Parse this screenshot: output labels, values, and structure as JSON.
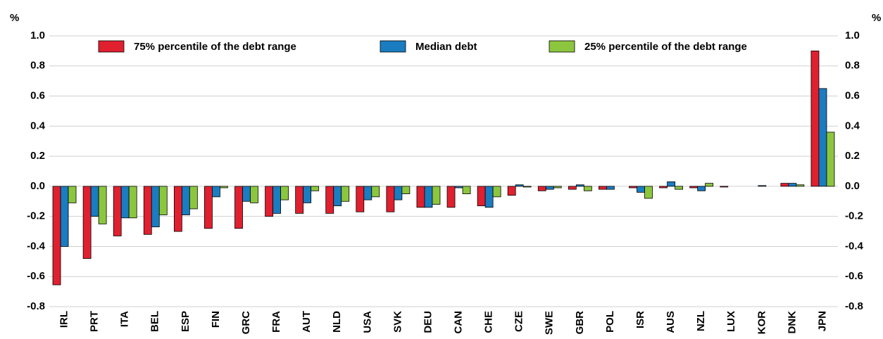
{
  "chart_data": {
    "type": "bar",
    "y_unit": "%",
    "categories": [
      "IRL",
      "PRT",
      "ITA",
      "BEL",
      "ESP",
      "FIN",
      "GRC",
      "FRA",
      "AUT",
      "NLD",
      "USA",
      "SVK",
      "DEU",
      "CAN",
      "CHE",
      "CZE",
      "SWE",
      "GBR",
      "POL",
      "ISR",
      "AUS",
      "NZL",
      "LUX",
      "KOR",
      "DNK",
      "JPN"
    ],
    "series": [
      {
        "name": "75% percentile of the debt range",
        "color": "#e0202f",
        "values": [
          -0.655,
          -0.48,
          -0.33,
          -0.32,
          -0.3,
          -0.28,
          -0.28,
          -0.2,
          -0.18,
          -0.18,
          -0.17,
          -0.17,
          -0.14,
          -0.14,
          -0.13,
          -0.06,
          -0.03,
          -0.02,
          -0.02,
          -0.01,
          -0.01,
          -0.01,
          -0.005,
          0,
          0.02,
          0.9
        ]
      },
      {
        "name": "Median debt",
        "color": "#1a7cc1",
        "values": [
          -0.4,
          -0.2,
          -0.21,
          -0.27,
          -0.19,
          -0.07,
          -0.1,
          -0.18,
          -0.11,
          -0.13,
          -0.09,
          -0.09,
          -0.14,
          -0.01,
          -0.14,
          0.01,
          -0.02,
          0.01,
          -0.02,
          -0.04,
          0.03,
          -0.03,
          0,
          0.005,
          0.02,
          0.65
        ]
      },
      {
        "name": "25% percentile of the debt range",
        "color": "#8cc63e",
        "values": [
          -0.11,
          -0.25,
          -0.21,
          -0.19,
          -0.15,
          -0.01,
          -0.11,
          -0.09,
          -0.03,
          -0.1,
          -0.07,
          -0.05,
          -0.12,
          -0.05,
          -0.07,
          -0.005,
          -0.01,
          -0.03,
          0,
          -0.08,
          -0.02,
          0.02,
          0,
          0,
          0.01,
          0.36
        ]
      }
    ],
    "ylim": [
      -0.8,
      1.0
    ],
    "yticks": [
      -0.8,
      -0.6,
      -0.4,
      -0.2,
      {
        "value": 0,
        "label": "0.0"
      },
      0.2,
      0.4,
      0.6,
      0.8,
      {
        "value": 1,
        "label": "1.0"
      }
    ],
    "grid": true,
    "legend": "top"
  }
}
